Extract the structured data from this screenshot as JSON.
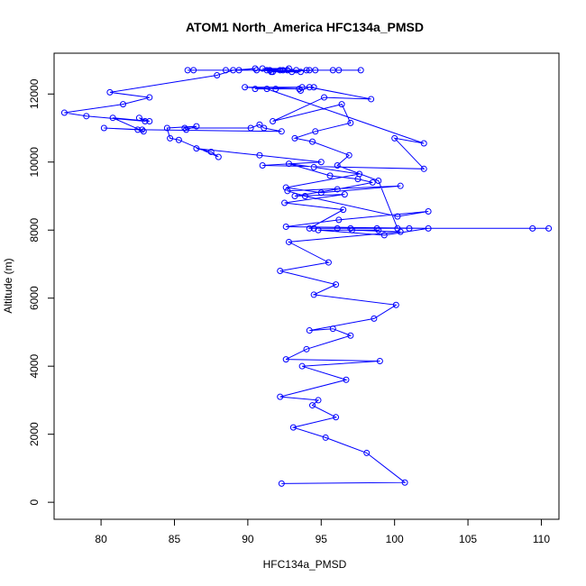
{
  "chart_data": {
    "type": "line",
    "title": "ATOM1 North_America HFC134a_PMSD",
    "xlabel": "HFC134a_PMSD",
    "ylabel": "Altitude (m)",
    "xlim": [
      76.8,
      111.2
    ],
    "ylim": [
      -500,
      13200
    ],
    "x_ticks": [
      80,
      85,
      90,
      95,
      100,
      105,
      110
    ],
    "x_tick_labels": [
      "80",
      "85",
      "90",
      "95",
      "100",
      "105",
      "110"
    ],
    "y_ticks": [
      0,
      2000,
      4000,
      6000,
      8000,
      10000,
      12000
    ],
    "y_tick_labels": [
      "0",
      "2000",
      "4000",
      "6000",
      "8000",
      "10000",
      "12000"
    ],
    "grid": false,
    "markers": "open-circle",
    "series": [
      {
        "color": "#0000ff",
        "x": [
          92.3,
          100.7,
          98.1,
          95.3,
          93.1,
          96.0,
          94.4,
          94.8,
          92.2,
          96.7,
          93.7,
          99.0,
          92.6,
          94.0,
          97.0,
          95.8,
          94.2,
          98.6,
          100.1,
          94.5,
          96.0,
          92.2,
          95.5,
          92.8,
          100.4,
          97.1,
          98.9,
          94.8,
          99.3,
          102.3,
          92.6,
          96.2,
          102.3,
          100.2,
          93.9,
          92.7,
          100.4,
          95.0,
          92.6,
          97.6,
          94.5,
          92.8,
          95.6,
          97.5,
          98.5,
          96.1,
          93.2,
          96.6,
          92.5,
          96.5,
          94.2,
          98.8,
          101.0,
          97.0,
          94.5,
          96.1,
          109.4,
          110.5,
          100.2,
          98.9,
          96.1,
          96.9,
          94.4,
          93.2,
          94.6,
          97.0,
          96.4,
          91.7,
          95.2,
          98.4,
          94.2,
          93.6,
          93.5,
          91.9,
          89.8,
          94.5,
          93.7,
          90.5,
          91.3,
          102.0,
          100.0,
          102.0,
          91.0,
          95.0,
          90.8,
          86.5,
          87.5,
          88.0,
          85.3,
          84.7,
          84.5,
          86.5,
          85.8,
          85.7,
          90.2,
          90.8,
          91.1,
          92.3,
          82.8,
          80.2,
          82.5,
          82.9,
          80.8,
          83.3,
          82.6,
          83.0,
          79.0,
          77.5,
          81.5,
          83.3,
          80.6,
          87.9,
          89.0,
          90.5,
          89.4,
          85.9,
          86.3,
          88.5,
          91.3,
          93.3,
          94.6,
          91.6,
          91.5,
          93.0,
          90.6,
          92.8,
          91.0,
          92.2,
          96.2,
          97.7,
          94.0,
          94.2,
          95.8,
          92.7,
          91.7,
          93.6,
          92.4
        ],
        "y": [
          550,
          580,
          1450,
          1900,
          2200,
          2500,
          2850,
          3000,
          3100,
          3600,
          4000,
          4150,
          4200,
          4500,
          4900,
          5100,
          5050,
          5400,
          5800,
          6100,
          6400,
          6800,
          7050,
          7650,
          7950,
          8000,
          8000,
          8000,
          7850,
          8050,
          8100,
          8300,
          8550,
          8400,
          9000,
          9150,
          9300,
          9100,
          9250,
          9650,
          9850,
          9950,
          9600,
          9500,
          9400,
          9200,
          9000,
          9050,
          8800,
          8600,
          8050,
          8050,
          8050,
          8050,
          8050,
          8050,
          8050,
          8050,
          8050,
          9450,
          9900,
          10200,
          10600,
          10700,
          10900,
          11150,
          11700,
          11200,
          11900,
          11850,
          12200,
          12100,
          12150,
          12150,
          12200,
          12200,
          12200,
          12150,
          12150,
          10550,
          10700,
          9800,
          9900,
          10000,
          10200,
          10400,
          10300,
          10150,
          10650,
          10700,
          11000,
          11050,
          10950,
          11000,
          11000,
          11100,
          11000,
          10900,
          10950,
          11000,
          10950,
          10900,
          11300,
          11200,
          11300,
          11200,
          11350,
          11450,
          11700,
          11900,
          12050,
          12550,
          12700,
          12750,
          12700,
          12700,
          12700,
          12700,
          12700,
          12700,
          12700,
          12650,
          12700,
          12650,
          12700,
          12750,
          12750,
          12700,
          12700,
          12700,
          12700,
          12700,
          12700,
          12700,
          12650,
          12650,
          12700
        ]
      }
    ]
  }
}
